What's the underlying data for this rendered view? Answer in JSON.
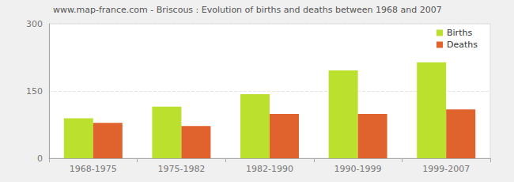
{
  "chart_data": {
    "type": "bar",
    "title": "www.map-france.com - Briscous : Evolution of births and deaths between 1968 and 2007",
    "categories": [
      "1968-1975",
      "1975-1982",
      "1982-1990",
      "1990-1999",
      "1999-2007"
    ],
    "series": [
      {
        "name": "Births",
        "color": "#bbe02e",
        "values": [
          89,
          115,
          143,
          196,
          214
        ]
      },
      {
        "name": "Deaths",
        "color": "#e0632e",
        "values": [
          79,
          72,
          99,
          99,
          109
        ]
      }
    ],
    "ylim": [
      0,
      300
    ],
    "yticks": [
      0,
      150,
      300
    ],
    "grid": true,
    "legend": "top-right"
  }
}
